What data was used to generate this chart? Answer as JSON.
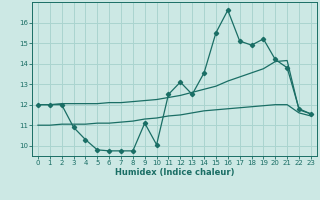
{
  "xlabel": "Humidex (Indice chaleur)",
  "bg_color": "#cce8e4",
  "grid_color": "#aad4cf",
  "line_color": "#1a6e65",
  "spine_color": "#1a6e65",
  "xlim": [
    -0.5,
    23.5
  ],
  "ylim": [
    9.5,
    17.0
  ],
  "yticks": [
    10,
    11,
    12,
    13,
    14,
    15,
    16
  ],
  "xticks": [
    0,
    1,
    2,
    3,
    4,
    5,
    6,
    7,
    8,
    9,
    10,
    11,
    12,
    13,
    14,
    15,
    16,
    17,
    18,
    19,
    20,
    21,
    22,
    23
  ],
  "line1_x": [
    0,
    1,
    2,
    3,
    4,
    5,
    6,
    7,
    8,
    9,
    10,
    11,
    12,
    13,
    14,
    15,
    16,
    17,
    18,
    19,
    20,
    21,
    22,
    23
  ],
  "line1_y": [
    12.0,
    12.0,
    12.0,
    10.9,
    10.3,
    9.8,
    9.75,
    9.75,
    9.75,
    11.1,
    10.05,
    12.5,
    13.1,
    12.5,
    13.55,
    15.5,
    16.6,
    15.1,
    14.9,
    15.2,
    14.2,
    13.8,
    11.8,
    11.55
  ],
  "line2_x": [
    0,
    1,
    2,
    3,
    4,
    5,
    6,
    7,
    8,
    9,
    10,
    11,
    12,
    13,
    14,
    15,
    16,
    17,
    18,
    19,
    20,
    21,
    22,
    23
  ],
  "line2_y": [
    12.0,
    12.0,
    12.05,
    12.05,
    12.05,
    12.05,
    12.1,
    12.1,
    12.15,
    12.2,
    12.25,
    12.35,
    12.45,
    12.6,
    12.75,
    12.9,
    13.15,
    13.35,
    13.55,
    13.75,
    14.1,
    14.15,
    11.75,
    11.55
  ],
  "line3_x": [
    0,
    1,
    2,
    3,
    4,
    5,
    6,
    7,
    8,
    9,
    10,
    11,
    12,
    13,
    14,
    15,
    16,
    17,
    18,
    19,
    20,
    21,
    22,
    23
  ],
  "line3_y": [
    11.0,
    11.0,
    11.05,
    11.05,
    11.05,
    11.1,
    11.1,
    11.15,
    11.2,
    11.3,
    11.35,
    11.45,
    11.5,
    11.6,
    11.7,
    11.75,
    11.8,
    11.85,
    11.9,
    11.95,
    12.0,
    12.0,
    11.6,
    11.45
  ],
  "tick_fontsize": 5.0,
  "xlabel_fontsize": 6.0
}
